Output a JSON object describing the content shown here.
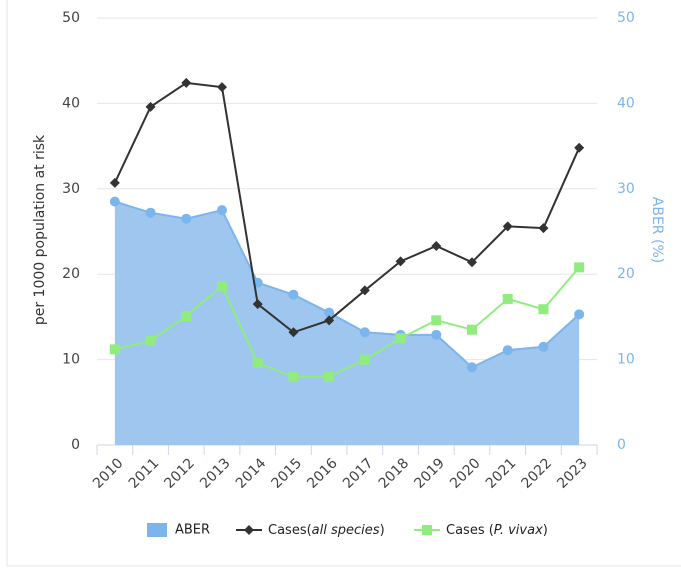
{
  "chart_data": {
    "type": "combo",
    "categories": [
      "2010",
      "2011",
      "2012",
      "2013",
      "2014",
      "2015",
      "2016",
      "2017",
      "2018",
      "2019",
      "2020",
      "2021",
      "2022",
      "2023"
    ],
    "ylabel": "per 1000 population at risk",
    "y2label": "ABER (%)",
    "ylim": [
      0,
      50
    ],
    "yticks": [
      0,
      10,
      20,
      30,
      40,
      50
    ],
    "y2lim": [
      0,
      50
    ],
    "y2ticks": [
      0,
      10,
      20,
      30,
      40,
      50
    ],
    "grid": true,
    "legend": "bottom",
    "series": [
      {
        "name": "ABER",
        "type": "area",
        "axis": "y2",
        "color": "#7cb5ec",
        "fill": "#9ec6ef",
        "values": [
          28.5,
          27.2,
          26.5,
          27.5,
          19.0,
          17.6,
          15.5,
          13.2,
          12.9,
          12.9,
          9.1,
          11.1,
          11.5,
          15.3
        ]
      },
      {
        "name": "Cases(all species)",
        "type": "line",
        "marker": "diamond",
        "color": "#333333",
        "values": [
          30.7,
          39.6,
          42.4,
          41.9,
          16.5,
          13.2,
          14.6,
          18.1,
          21.5,
          23.3,
          21.4,
          25.6,
          25.4,
          34.8
        ]
      },
      {
        "name": "Cases (P. vivax)",
        "type": "line",
        "marker": "square",
        "color": "#90ed7d",
        "values": [
          11.2,
          12.2,
          15.1,
          18.6,
          9.6,
          8.0,
          8.0,
          10.0,
          12.5,
          14.6,
          13.5,
          17.1,
          15.9,
          20.8
        ]
      }
    ]
  }
}
